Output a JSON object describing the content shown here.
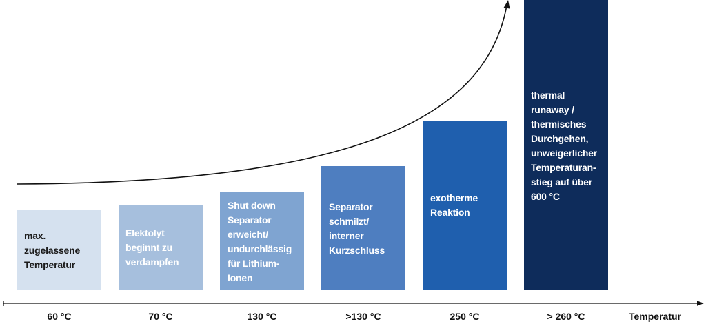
{
  "stages": [
    {
      "temperature": "60 °C",
      "lines": [
        "max.",
        "zugelassene",
        "Temperatur"
      ],
      "color": "#d5e1ef",
      "text_color": "#1c1c1c"
    },
    {
      "temperature": "70 °C",
      "lines": [
        "Elektolyt",
        "beginnt zu",
        "verdampfen"
      ],
      "color": "#a6bfdd",
      "text_color": "#ffffff"
    },
    {
      "temperature": "130 °C",
      "lines": [
        "Shut down",
        "Separator",
        "erweicht/",
        "undurchlässig",
        "für Lithium-",
        "Ionen"
      ],
      "color": "#7fa4d1",
      "text_color": "#ffffff"
    },
    {
      "temperature": ">130 °C",
      "lines": [
        "Separator",
        "schmilzt/",
        "interner",
        "Kurzschluss"
      ],
      "color": "#4e7ec0",
      "text_color": "#ffffff"
    },
    {
      "temperature": "250 °C",
      "lines": [
        "exotherme",
        "Reaktion"
      ],
      "color": "#1f5fae",
      "text_color": "#ffffff"
    },
    {
      "temperature": "> 260 °C",
      "lines": [
        "thermal",
        "runaway /",
        "thermisches",
        "Durchgehen,",
        "unweigerlicher",
        "Temperaturan-",
        "stieg auf über",
        "600 °C"
      ],
      "color": "#0e2c5b",
      "text_color": "#ffffff"
    }
  ],
  "axis": {
    "label": "Temperatur",
    "color": "#111111"
  },
  "curve": {
    "color": "#111111"
  }
}
